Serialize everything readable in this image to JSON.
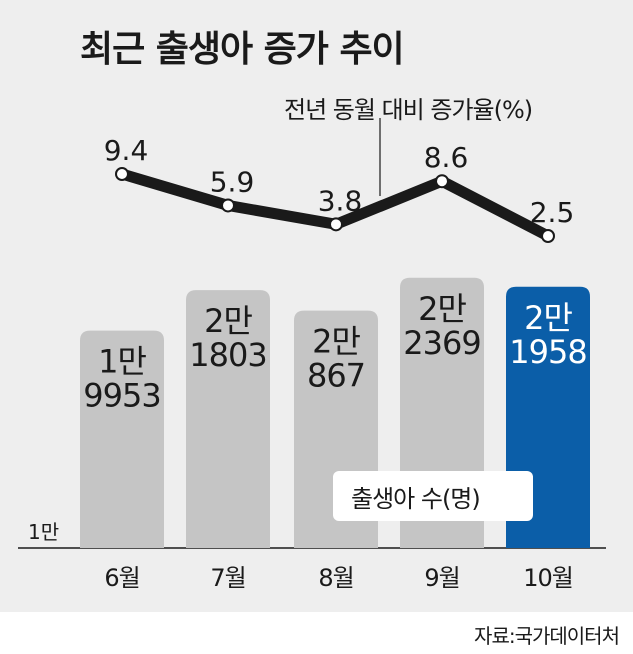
{
  "chart_data": {
    "type": "bar",
    "title": "최근 출생아 증가 추이",
    "categories": [
      "6월",
      "7월",
      "8월",
      "9월",
      "10월"
    ],
    "series": [
      {
        "name": "출생아 수(명)",
        "type": "bar",
        "values": [
          19953,
          21803,
          20867,
          22369,
          21958
        ],
        "value_labels": [
          [
            "1만",
            "9953"
          ],
          [
            "2만",
            "1803"
          ],
          [
            "2만",
            "867"
          ],
          [
            "2만",
            "2369"
          ],
          [
            "2만",
            "1958"
          ]
        ]
      },
      {
        "name": "전년 동월 대비 증가율(%)",
        "type": "line",
        "values": [
          9.4,
          5.9,
          3.8,
          8.6,
          2.5
        ],
        "value_labels": [
          "9.4",
          "5.9",
          "3.8",
          "8.6",
          "2.5"
        ]
      }
    ],
    "y_tick_label": "1만",
    "ylim": [
      10000,
      23000
    ],
    "highlight_index": 4,
    "colors": {
      "bar": "#c5c5c5",
      "bar_highlight": "#0b5ea8",
      "line": "#1a1a1a",
      "panel": "#eeeeee"
    },
    "grid": false
  },
  "source": "자료:국가데이터처"
}
